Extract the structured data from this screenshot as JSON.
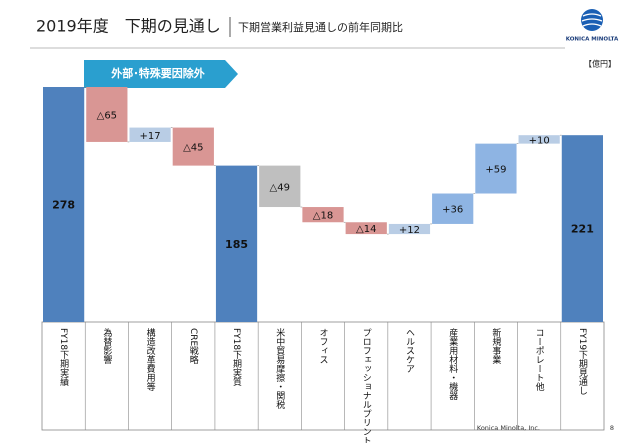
{
  "title": "2019年度　下期の見通し",
  "subtitle": "下期営業利益見通しの前年同期比",
  "logo": "KONICA MINOLTA",
  "footer": "Konica Minolta, Inc.",
  "page_number": "8",
  "chart_data": {
    "type": "waterfall",
    "unit": "【億円】",
    "annotation": "外部･特殊要因除外",
    "categories": [
      "FY18下期実績",
      "為替影響",
      "構造改革費用等",
      "CRE戦略",
      "FY18下期実質",
      "米中貿易摩擦・関税",
      "オフィス",
      "プロフェッショナルプリント",
      "ヘルスケア",
      "産業用材料・機器",
      "新規事業",
      "コーポレート他",
      "FY19下期見通し"
    ],
    "values": [
      278,
      -65,
      17,
      -45,
      185,
      -49,
      -18,
      -14,
      12,
      36,
      59,
      10,
      221
    ],
    "value_labels": [
      "278",
      "△65",
      "+17",
      "△45",
      "185",
      "△49",
      "△18",
      "△14",
      "+12",
      "+36",
      "+59",
      "+10",
      "221"
    ],
    "measure": [
      "absolute",
      "relative",
      "relative",
      "relative",
      "absolute",
      "relative",
      "relative",
      "relative",
      "relative",
      "relative",
      "relative",
      "relative",
      "absolute"
    ],
    "colors": [
      "#4f81bd",
      "#d99694",
      "#b9cde5",
      "#d99694",
      "#4f81bd",
      "#bfbfbf",
      "#d99694",
      "#d99694",
      "#b9cde5",
      "#8eb4e3",
      "#8eb4e3",
      "#b9cde5",
      "#4f81bd"
    ]
  }
}
